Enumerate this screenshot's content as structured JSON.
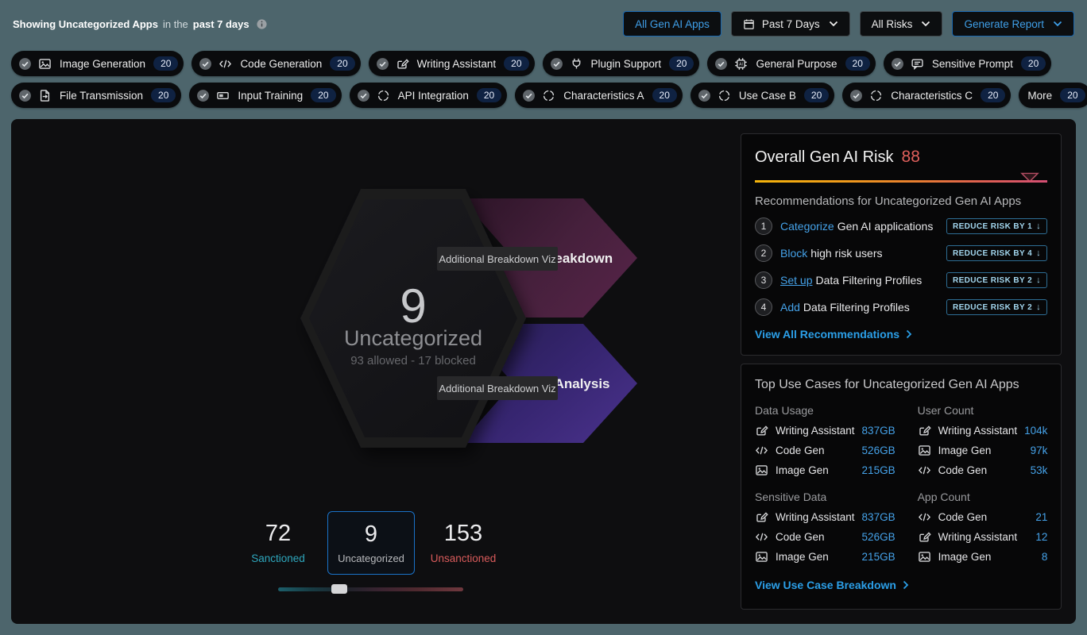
{
  "topbar": {
    "status_prefix": "Showing Uncategorized Apps",
    "status_mid": "in the",
    "status_suffix": "past 7 days",
    "all_apps_button": "All Gen AI Apps",
    "period_button": "Past 7 Days",
    "risks_button": "All Risks",
    "generate_button": "Generate Report"
  },
  "filters": {
    "row1": [
      {
        "checked": true,
        "icon": "image",
        "label": "Image Generation",
        "count": "20"
      },
      {
        "checked": true,
        "icon": "code",
        "label": "Code Generation",
        "count": "20"
      },
      {
        "checked": true,
        "icon": "writing",
        "label": "Writing Assistant",
        "count": "20"
      },
      {
        "checked": true,
        "icon": "plug",
        "label": "Plugin Support",
        "count": "20"
      },
      {
        "checked": true,
        "icon": "chip",
        "label": "General Purpose",
        "count": "20"
      },
      {
        "checked": true,
        "icon": "chat",
        "label": "Sensitive Prompt",
        "count": "20"
      }
    ],
    "row2": [
      {
        "checked": true,
        "icon": "file",
        "label": "File Transmission",
        "count": "20"
      },
      {
        "checked": true,
        "icon": "input",
        "label": "Input Training",
        "count": "20"
      },
      {
        "checked": true,
        "icon": "api",
        "label": "API Integration",
        "count": "20"
      },
      {
        "checked": true,
        "icon": "api",
        "label": "Characteristics A",
        "count": "20"
      },
      {
        "checked": true,
        "icon": "api",
        "label": "Use Case B",
        "count": "20"
      },
      {
        "checked": true,
        "icon": "api",
        "label": "Characteristics C",
        "count": "20"
      },
      {
        "checked": false,
        "icon": null,
        "label": "More",
        "count": "20"
      }
    ]
  },
  "funnel": {
    "count": "9",
    "label": "Uncategorized",
    "sublabel": "93 allowed - 17 blocked",
    "arrows": [
      {
        "label": "Risk Breakdown"
      },
      {
        "label": "Usage Analysis"
      }
    ],
    "viz_box_label": "Additional Breakdown Viz"
  },
  "stats": {
    "sanctioned": {
      "value": "72",
      "label": "Sanctioned"
    },
    "uncategorized": {
      "value": "9",
      "label": "Uncategorized"
    },
    "unsanctioned": {
      "value": "153",
      "label": "Unsanctioned"
    }
  },
  "risk_card": {
    "title": "Overall Gen AI Risk",
    "score": "88",
    "score_pct": 94,
    "subtitle": "Recommendations for Uncategorized Gen AI Apps",
    "recommendations": [
      {
        "num": "1",
        "action": "Categorize",
        "rest": "Gen AI applications",
        "badge": "REDUCE RISK BY 1",
        "underline": false
      },
      {
        "num": "2",
        "action": "Block",
        "rest": "high risk users",
        "badge": "REDUCE RISK BY 4",
        "underline": false
      },
      {
        "num": "3",
        "action": "Set up",
        "rest": "Data Filtering Profiles",
        "badge": "REDUCE RISK BY 2",
        "underline": true
      },
      {
        "num": "4",
        "action": "Add",
        "rest": "Data Filtering Profiles",
        "badge": "REDUCE RISK BY 2",
        "underline": false
      }
    ],
    "view_all": "View All Recommendations"
  },
  "use_cases_card": {
    "title": "Top Use Cases for Uncategorized Gen AI Apps",
    "groups": [
      {
        "header": "Data Usage",
        "rows": [
          {
            "icon": "writing",
            "name": "Writing Assistant",
            "value": "837GB"
          },
          {
            "icon": "code",
            "name": "Code Gen",
            "value": "526GB"
          },
          {
            "icon": "image",
            "name": "Image Gen",
            "value": "215GB"
          }
        ]
      },
      {
        "header": "User Count",
        "rows": [
          {
            "icon": "writing",
            "name": "Writing Assistant",
            "value": "104k"
          },
          {
            "icon": "image",
            "name": "Image Gen",
            "value": "97k"
          },
          {
            "icon": "code",
            "name": "Code Gen",
            "value": "53k"
          }
        ]
      },
      {
        "header": "Sensitive Data",
        "rows": [
          {
            "icon": "writing",
            "name": "Writing Assistant",
            "value": "837GB"
          },
          {
            "icon": "code",
            "name": "Code Gen",
            "value": "526GB"
          },
          {
            "icon": "image",
            "name": "Image Gen",
            "value": "215GB"
          }
        ]
      },
      {
        "header": "App Count",
        "rows": [
          {
            "icon": "code",
            "name": "Code Gen",
            "value": "21"
          },
          {
            "icon": "writing",
            "name": "Writing Assistant",
            "value": "12"
          },
          {
            "icon": "image",
            "name": "Image Gen",
            "value": "8"
          }
        ]
      }
    ],
    "view_link": "View Use Case Breakdown"
  },
  "colors": {
    "page_background": "#4d656c",
    "panel_background": "#0e0e10",
    "accent_blue": "#45a2e9",
    "risk_score_red": "#e0605c",
    "sanctioned_teal": "#2ea7bd",
    "unsanctioned_red": "#d95b5b",
    "risk_meter_gradient": [
      "#f4b40b",
      "#ef9b1b",
      "#e87e30",
      "#de5f52",
      "#d44f74"
    ]
  }
}
